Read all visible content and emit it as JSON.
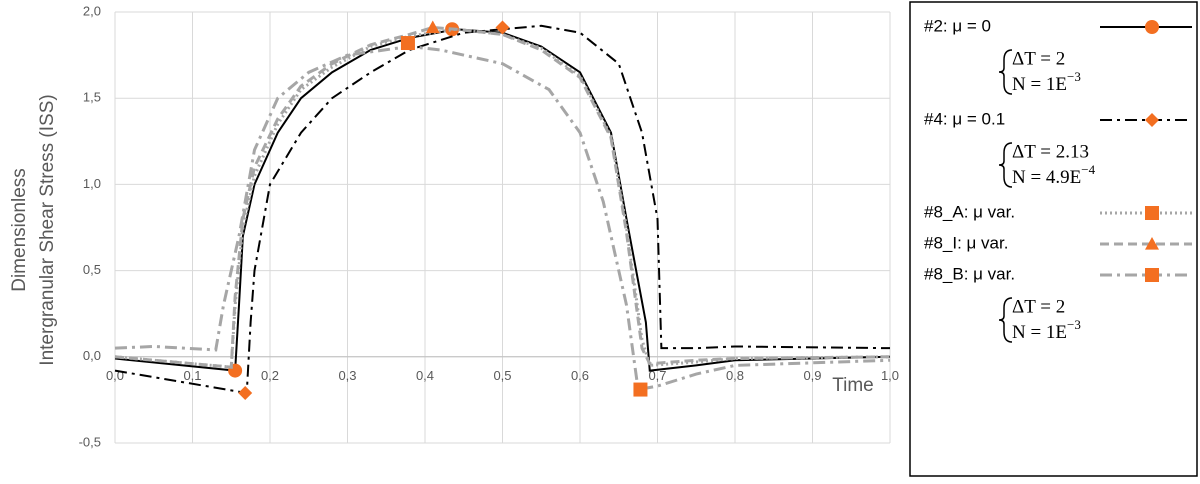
{
  "chart_data": {
    "type": "line",
    "y_label_lines": [
      "Dimensionless",
      "Intergranular Shear Stress (ISS)"
    ],
    "x_label": "Time",
    "xlim": [
      0,
      1
    ],
    "ylim": [
      -0.5,
      2
    ],
    "xticks": [
      {
        "value": 0,
        "label": "0,0"
      },
      {
        "value": 0.1,
        "label": "0,1"
      },
      {
        "value": 0.2,
        "label": "0,2"
      },
      {
        "value": 0.3,
        "label": "0,3"
      },
      {
        "value": 0.4,
        "label": "0,4"
      },
      {
        "value": 0.5,
        "label": "0,5"
      },
      {
        "value": 0.6,
        "label": "0,6"
      },
      {
        "value": 0.7,
        "label": "0,7"
      },
      {
        "value": 0.8,
        "label": "0,8"
      },
      {
        "value": 0.9,
        "label": "0,9"
      },
      {
        "value": 1,
        "label": "1,0"
      }
    ],
    "yticks": [
      {
        "value": -0.5,
        "label": "-0,5"
      },
      {
        "value": 0,
        "label": "0,0"
      },
      {
        "value": 0.5,
        "label": "0,5"
      },
      {
        "value": 1,
        "label": "1,0"
      },
      {
        "value": 1.5,
        "label": "1,5"
      },
      {
        "value": 2,
        "label": "2,0"
      }
    ],
    "grid": true,
    "marker_color": "#f36f21",
    "series": [
      {
        "name": "#2: μ = 0",
        "color": "#000000",
        "dash": "solid",
        "marker": "circle",
        "x": [
          0,
          0.155,
          0.16,
          0.165,
          0.18,
          0.21,
          0.24,
          0.28,
          0.33,
          0.38,
          0.44,
          0.5,
          0.55,
          0.6,
          0.64,
          0.66,
          0.685,
          0.69,
          0.75,
          0.8,
          1
        ],
        "values": [
          -0.01,
          -0.08,
          0.3,
          0.7,
          1.0,
          1.3,
          1.5,
          1.65,
          1.78,
          1.85,
          1.9,
          1.88,
          1.8,
          1.65,
          1.3,
          0.8,
          0.2,
          -0.08,
          -0.05,
          -0.02,
          0
        ],
        "markers": {
          "x": [
            0.155,
            0.435
          ],
          "y": [
            -0.08,
            1.9
          ]
        }
      },
      {
        "name": "#4: μ = 0.1",
        "color": "#000000",
        "dash": "dashdot",
        "marker": "diamond",
        "x": [
          0,
          0.17,
          0.175,
          0.18,
          0.2,
          0.24,
          0.28,
          0.33,
          0.38,
          0.45,
          0.55,
          0.6,
          0.65,
          0.68,
          0.7,
          0.705,
          0.75,
          0.8,
          1
        ],
        "values": [
          -0.08,
          -0.21,
          0.2,
          0.5,
          1.0,
          1.3,
          1.5,
          1.65,
          1.78,
          1.88,
          1.92,
          1.88,
          1.7,
          1.3,
          0.8,
          0.05,
          0.05,
          0.06,
          0.05
        ],
        "markers": {
          "x": [
            0.168,
            0.5
          ],
          "y": [
            -0.21,
            1.91
          ]
        }
      },
      {
        "name": "#8_A: μ var.",
        "color": "#a6a6a6",
        "dash": "dotted",
        "marker": "square",
        "x": [
          0,
          0.15,
          0.155,
          0.165,
          0.18,
          0.21,
          0.24,
          0.28,
          0.33,
          0.38,
          0.44,
          0.5,
          0.55,
          0.6,
          0.64,
          0.66,
          0.68,
          0.69,
          0.75,
          0.8,
          1
        ],
        "values": [
          0,
          -0.06,
          0.3,
          0.75,
          1.05,
          1.35,
          1.55,
          1.68,
          1.8,
          1.86,
          1.9,
          1.87,
          1.79,
          1.63,
          1.28,
          0.75,
          0.1,
          -0.05,
          -0.03,
          -0.01,
          0
        ],
        "markers": {
          "x": [],
          "y": []
        }
      },
      {
        "name": "#8_I: μ var.",
        "color": "#a6a6a6",
        "dash": "dashed",
        "marker": "triangle",
        "x": [
          0,
          0.15,
          0.155,
          0.165,
          0.18,
          0.21,
          0.24,
          0.28,
          0.33,
          0.38,
          0.41,
          0.44,
          0.5,
          0.55,
          0.6,
          0.64,
          0.66,
          0.68,
          0.69,
          0.75,
          0.8,
          1
        ],
        "values": [
          0,
          -0.06,
          0.35,
          0.8,
          1.1,
          1.38,
          1.57,
          1.7,
          1.81,
          1.87,
          1.91,
          1.9,
          1.87,
          1.78,
          1.62,
          1.27,
          0.72,
          0.05,
          -0.04,
          -0.02,
          -0.01,
          0
        ],
        "markers": {
          "x": [
            0.41
          ],
          "y": [
            1.91
          ]
        }
      },
      {
        "name": "#8_B: μ var.",
        "color": "#a6a6a6",
        "dash": "dashdot",
        "marker": "square",
        "x": [
          0,
          0.05,
          0.13,
          0.14,
          0.16,
          0.18,
          0.21,
          0.25,
          0.3,
          0.38,
          0.42,
          0.5,
          0.56,
          0.6,
          0.63,
          0.66,
          0.675,
          0.7,
          0.75,
          0.8,
          1
        ],
        "values": [
          0.05,
          0.06,
          0.04,
          0.3,
          0.7,
          1.2,
          1.5,
          1.65,
          1.75,
          1.8,
          1.78,
          1.7,
          1.55,
          1.3,
          0.9,
          0.3,
          -0.19,
          -0.17,
          -0.1,
          -0.05,
          -0.02
        ],
        "markers": {
          "x": [
            0.378,
            0.678
          ],
          "y": [
            1.82,
            -0.19
          ]
        }
      }
    ],
    "legend_notes": [
      {
        "after": 0,
        "delta_t": "ΔT = 2",
        "n_base": "N = 1E",
        "n_exp": "−3"
      },
      {
        "after": 1,
        "delta_t": "ΔT = 2.13",
        "n_base": "N = 4.9E",
        "n_exp": "−4"
      },
      {
        "after": 4,
        "delta_t": "ΔT = 2",
        "n_base": "N = 1E",
        "n_exp": "−3"
      }
    ]
  }
}
